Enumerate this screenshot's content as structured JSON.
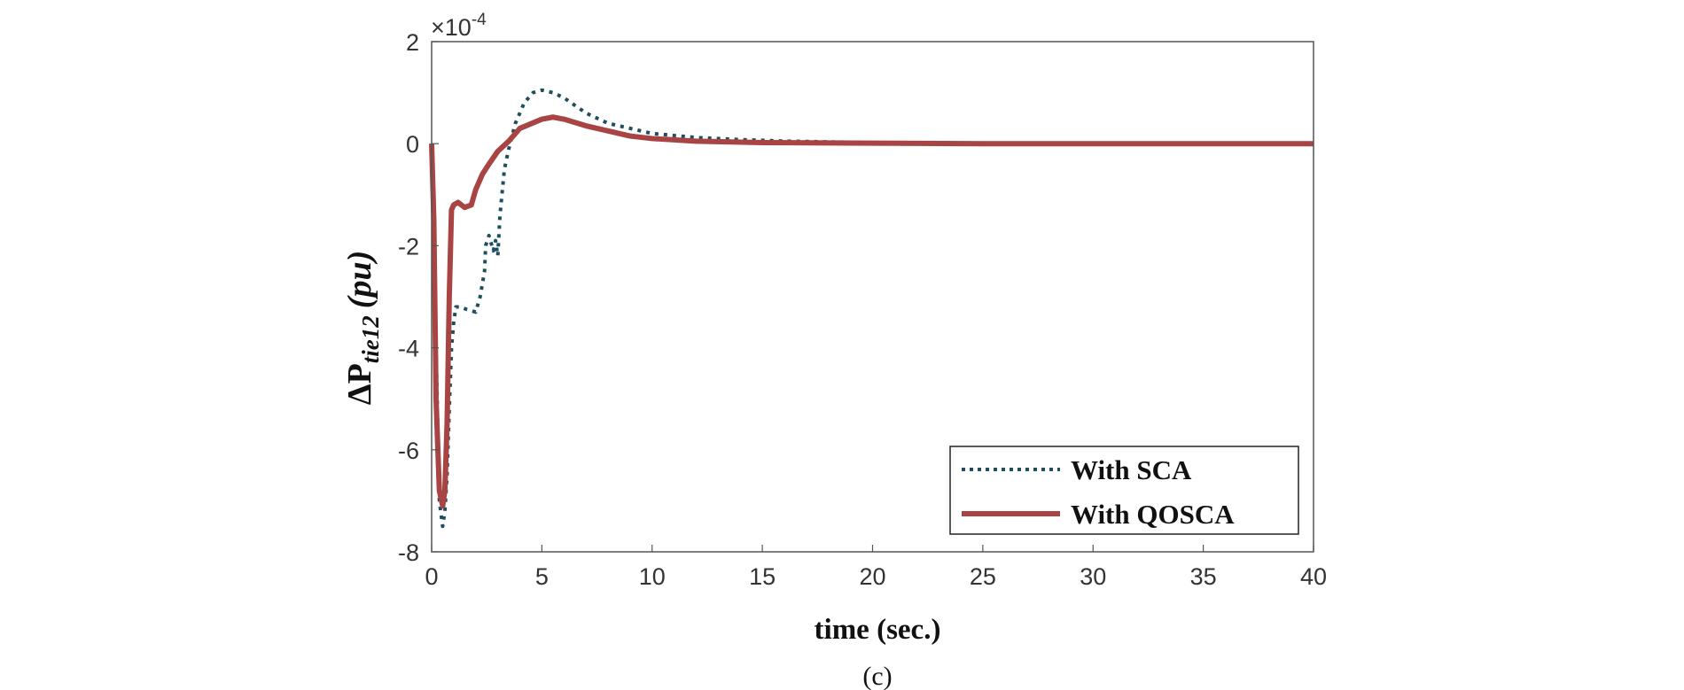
{
  "chart_data": {
    "type": "line",
    "xlabel": "time (sec.)",
    "ylabel_main": "ΔP",
    "ylabel_subscript": "tie12",
    "ylabel_unit": "(pu)",
    "y_exponent_prefix": "×10",
    "y_exponent": "-4",
    "panel_label": "(c)",
    "xlim": [
      0,
      40
    ],
    "ylim": [
      -8,
      2
    ],
    "x_ticks": [
      0,
      5,
      10,
      15,
      20,
      25,
      30,
      35,
      40
    ],
    "y_ticks": [
      -8,
      -6,
      -4,
      -2,
      0,
      2
    ],
    "grid": false,
    "legend_position": "bottom-right",
    "series": [
      {
        "name": "With SCA",
        "style": "dotted",
        "color": "#1f4e5f",
        "x": [
          0,
          0.1,
          0.2,
          0.35,
          0.5,
          0.6,
          0.7,
          0.8,
          0.9,
          1.0,
          1.1,
          1.3,
          1.6,
          2.0,
          2.2,
          2.4,
          2.45,
          2.6,
          2.8,
          2.9,
          3.0,
          3.1,
          3.3,
          3.5,
          3.8,
          4.2,
          4.6,
          5.0,
          5.5,
          6.0,
          6.5,
          7.0,
          8.0,
          9.0,
          10.0,
          12.0,
          14.0,
          16.0,
          20.0,
          25.0,
          30.0,
          35.0,
          40.0
        ],
        "y": [
          0,
          -1.0,
          -4.0,
          -7.0,
          -7.5,
          -7.2,
          -6.5,
          -5.2,
          -4.0,
          -3.5,
          -3.2,
          -3.2,
          -3.25,
          -3.3,
          -3.0,
          -2.5,
          -2.0,
          -1.8,
          -2.1,
          -1.9,
          -2.2,
          -1.4,
          -0.5,
          -0.1,
          0.4,
          0.8,
          1.0,
          1.05,
          1.0,
          0.9,
          0.75,
          0.6,
          0.4,
          0.3,
          0.2,
          0.12,
          0.08,
          0.05,
          0.02,
          0.01,
          0,
          0,
          0
        ]
      },
      {
        "name": "With QOSCA",
        "style": "solid",
        "color": "#a84444",
        "x": [
          0,
          0.1,
          0.2,
          0.35,
          0.5,
          0.6,
          0.7,
          0.8,
          0.9,
          1.0,
          1.2,
          1.5,
          1.8,
          2.0,
          2.3,
          2.6,
          3.0,
          3.5,
          4.0,
          5.0,
          5.5,
          6.0,
          7.0,
          8.0,
          9.0,
          10.0,
          12.0,
          15.0,
          20.0,
          25.0,
          30.0,
          35.0,
          40.0
        ],
        "y": [
          0,
          -1.5,
          -5.0,
          -6.8,
          -7.1,
          -6.8,
          -5.5,
          -3.0,
          -1.3,
          -1.2,
          -1.15,
          -1.25,
          -1.2,
          -0.9,
          -0.6,
          -0.4,
          -0.15,
          0.05,
          0.3,
          0.48,
          0.52,
          0.48,
          0.35,
          0.25,
          0.15,
          0.1,
          0.05,
          0.02,
          0.01,
          0,
          0,
          0,
          0
        ]
      }
    ]
  }
}
